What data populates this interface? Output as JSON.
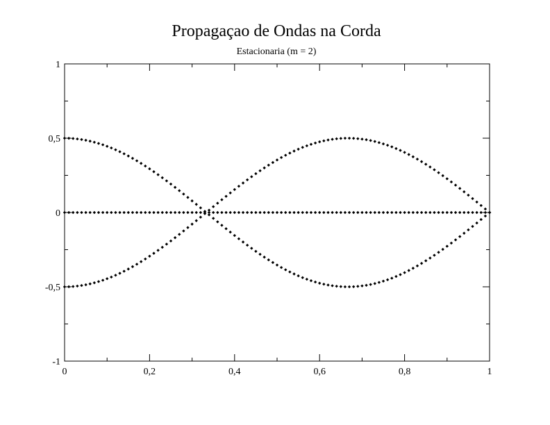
{
  "chart_data": {
    "type": "scatter",
    "title": "Propagaçao de Ondas na Corda",
    "subtitle": "Estacionaria (m = 2)",
    "xlabel": "",
    "ylabel": "",
    "xlim": [
      0,
      1
    ],
    "ylim": [
      -1,
      1
    ],
    "x_ticks": [
      0,
      0.2,
      0.4,
      0.6,
      0.8,
      1
    ],
    "x_tick_labels": [
      "0",
      "0,2",
      "0,4",
      "0,6",
      "0,8",
      "1"
    ],
    "y_ticks": [
      -1,
      -0.5,
      0,
      0.5,
      1
    ],
    "y_tick_labels": [
      "-1",
      "-0,5",
      "0",
      "0,5",
      "1"
    ],
    "grid": false,
    "legend": "none",
    "marker": "diamond",
    "marker_color": "#000000",
    "series": [
      {
        "amplitude": 0.5
      },
      {
        "amplitude": 0.0
      },
      {
        "amplitude": -0.5
      }
    ],
    "function": "y = A*cos(1.5*pi*x)",
    "x_step": 0.01
  }
}
